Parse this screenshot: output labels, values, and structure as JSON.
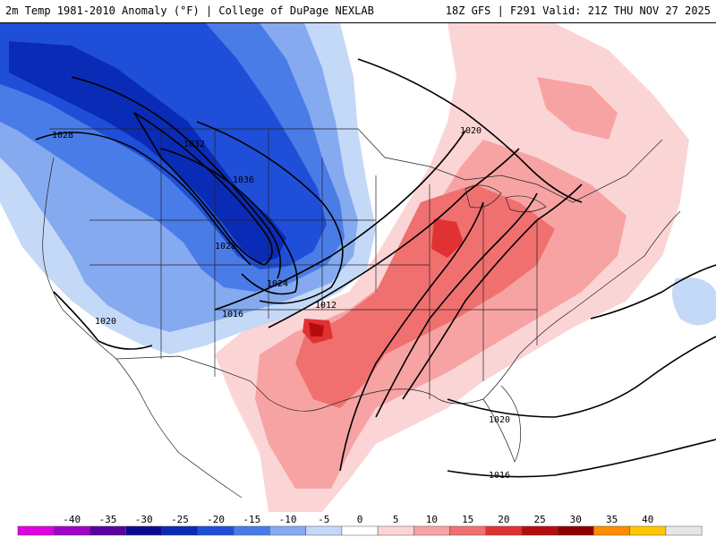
{
  "header": {
    "title_left": "2m Temp 1981-2010 Anomaly (°F) | College of DuPage NEXLAB",
    "title_right": "18Z GFS | F291 Valid: 21Z THU NOV 27 2025"
  },
  "map": {
    "isobar_labels": [
      "1028",
      "1032",
      "1036",
      "1028",
      "1024",
      "1020",
      "1016",
      "1012",
      "1020",
      "1020",
      "1016"
    ],
    "anomaly_colors": {
      "cold_-25": "#0a2bb5",
      "cold_-20": "#1f4fd8",
      "cold_-15": "#4a7ce8",
      "cold_-10": "#85aaf0",
      "cold_-5": "#c4d9f8",
      "warm_5": "#fbd5d5",
      "warm_10": "#f7a3a3",
      "warm_15": "#f07070",
      "warm_20": "#e03232",
      "warm_25": "#b50d0d"
    }
  },
  "colorbar": {
    "ticks": [
      "-40",
      "-35",
      "-30",
      "-25",
      "-20",
      "-15",
      "-10",
      "-5",
      "0",
      "5",
      "10",
      "15",
      "20",
      "25",
      "30",
      "35",
      "40"
    ],
    "colors": [
      "#e000e0",
      "#a000c8",
      "#5a00a0",
      "#0a0a8c",
      "#0a2bb5",
      "#1f4fd8",
      "#4a7ce8",
      "#85aaf0",
      "#c4d9f8",
      "#ffffff",
      "#fbd5d5",
      "#f7a3a3",
      "#f07070",
      "#e03232",
      "#b50d0d",
      "#8c0000",
      "#ff8c00",
      "#ffc800",
      "#e6e6e6"
    ]
  }
}
